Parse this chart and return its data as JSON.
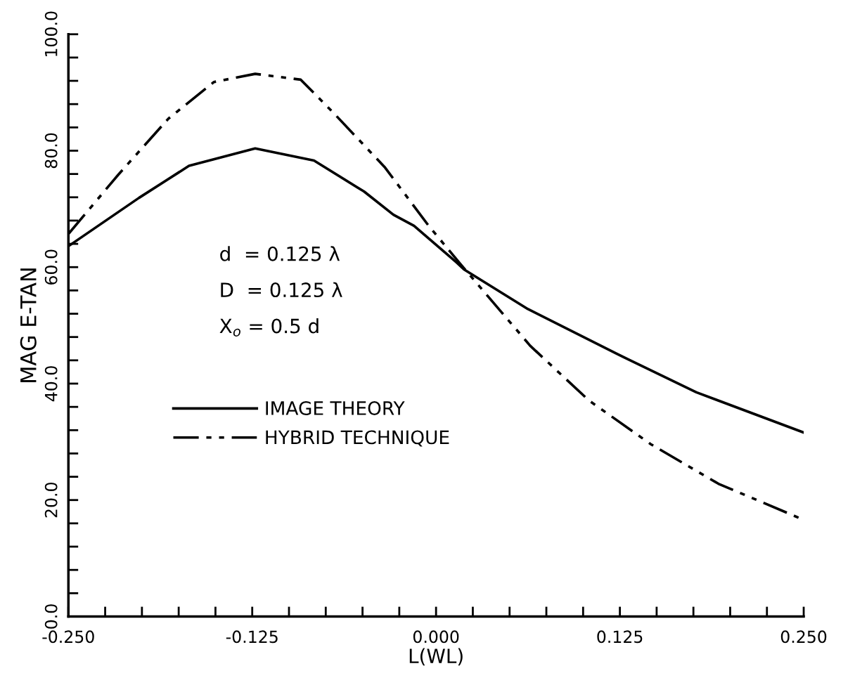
{
  "chart_data": {
    "type": "line",
    "xlabel": "L(WL)",
    "ylabel": "MAG E-TAN",
    "annotations": [
      "d  = 0.125 λ",
      "D  = 0.125 λ",
      "X$_{o}$ = 0.5 d"
    ],
    "series": [
      {
        "name": "IMAGE THEORY",
        "color": "#000000",
        "line_style": "solid",
        "x": [
          -0.25,
          -0.202,
          -0.168,
          -0.123,
          -0.083,
          -0.049,
          -0.029,
          -0.015,
          0.014,
          0.019,
          0.0625,
          0.123,
          0.177,
          0.25
        ],
        "values": [
          63.6,
          71.9,
          77.4,
          80.4,
          78.3,
          73.0,
          69.0,
          67.1,
          60.8,
          59.6,
          52.8,
          45.1,
          38.5,
          31.6
        ]
      },
      {
        "name": "HYBRID TECHNIQUE",
        "color": "#000000",
        "line_style": "dashed",
        "x": [
          -0.25,
          -0.216,
          -0.182,
          -0.151,
          -0.123,
          -0.092,
          -0.069,
          -0.035,
          -0.005,
          0.0167,
          0.064,
          0.104,
          0.146,
          0.192,
          0.25
        ],
        "values": [
          65.7,
          75.9,
          85.5,
          91.8,
          93.2,
          92.2,
          86.3,
          77.2,
          67.1,
          60.5,
          46.5,
          37.1,
          29.6,
          22.8,
          16.6
        ]
      }
    ],
    "xlim": [
      -0.25,
      0.25
    ],
    "ylim": [
      0,
      100
    ],
    "xticks": [
      {
        "value": -0.25,
        "label": "-0.250"
      },
      {
        "value": -0.225,
        "label": null
      },
      {
        "value": -0.2,
        "label": null
      },
      {
        "value": -0.175,
        "label": null
      },
      {
        "value": -0.15,
        "label": null
      },
      {
        "value": -0.125,
        "label": "-0.125"
      },
      {
        "value": -0.1,
        "label": null
      },
      {
        "value": -0.075,
        "label": null
      },
      {
        "value": -0.05,
        "label": null
      },
      {
        "value": -0.025,
        "label": null
      },
      {
        "value": 0,
        "label": "0.000"
      },
      {
        "value": 0.025,
        "label": null
      },
      {
        "value": 0.05,
        "label": null
      },
      {
        "value": 0.075,
        "label": null
      },
      {
        "value": 0.1,
        "label": null
      },
      {
        "value": 0.125,
        "label": "0.125"
      },
      {
        "value": 0.15,
        "label": null
      },
      {
        "value": 0.175,
        "label": null
      },
      {
        "value": 0.2,
        "label": null
      },
      {
        "value": 0.225,
        "label": null
      },
      {
        "value": 0.25,
        "label": "0.250"
      }
    ],
    "yticks": [
      {
        "value": 0,
        "label": "0.0"
      },
      {
        "value": 4,
        "label": null
      },
      {
        "value": 8,
        "label": null
      },
      {
        "value": 12,
        "label": null
      },
      {
        "value": 16,
        "label": null
      },
      {
        "value": 20,
        "label": "20.0"
      },
      {
        "value": 24,
        "label": null
      },
      {
        "value": 28,
        "label": null
      },
      {
        "value": 32,
        "label": null
      },
      {
        "value": 36,
        "label": null
      },
      {
        "value": 40,
        "label": "40.0"
      },
      {
        "value": 44,
        "label": null
      },
      {
        "value": 48,
        "label": null
      },
      {
        "value": 52,
        "label": null
      },
      {
        "value": 56,
        "label": null
      },
      {
        "value": 60,
        "label": "60.0"
      },
      {
        "value": 64,
        "label": null
      },
      {
        "value": 68,
        "label": null
      },
      {
        "value": 72,
        "label": null
      },
      {
        "value": 76,
        "label": null
      },
      {
        "value": 80,
        "label": "80.0"
      },
      {
        "value": 84,
        "label": null
      },
      {
        "value": 88,
        "label": null
      },
      {
        "value": 92,
        "label": null
      },
      {
        "value": 96,
        "label": null
      },
      {
        "value": 100,
        "label": "100.0"
      }
    ],
    "grid": false,
    "legend": "center left"
  }
}
